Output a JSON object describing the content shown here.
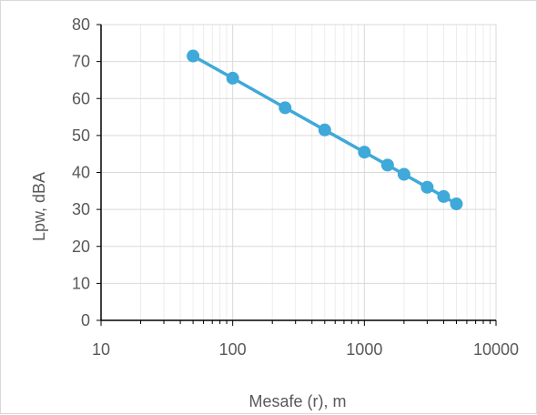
{
  "chart_data": {
    "type": "line",
    "title": "",
    "xlabel": "Mesafe (r), m",
    "ylabel": "Lpw, dBA",
    "x_scale": "log",
    "xlim": [
      10,
      10000
    ],
    "ylim": [
      0,
      80
    ],
    "x_ticks": [
      "10",
      "100",
      "1000",
      "10000"
    ],
    "y_ticks": [
      "0",
      "10",
      "20",
      "30",
      "40",
      "50",
      "60",
      "70",
      "80"
    ],
    "grid": true,
    "legend": "none",
    "series": [
      {
        "color": "#3fa9d9",
        "points": [
          {
            "x": 50,
            "y": 71.5
          },
          {
            "x": 100,
            "y": 65.5
          },
          {
            "x": 250,
            "y": 57.5
          },
          {
            "x": 500,
            "y": 51.5
          },
          {
            "x": 1000,
            "y": 45.5
          },
          {
            "x": 1500,
            "y": 42
          },
          {
            "x": 2000,
            "y": 39.5
          },
          {
            "x": 3000,
            "y": 36
          },
          {
            "x": 4000,
            "y": 33.5
          },
          {
            "x": 5000,
            "y": 31.5
          }
        ]
      }
    ]
  }
}
